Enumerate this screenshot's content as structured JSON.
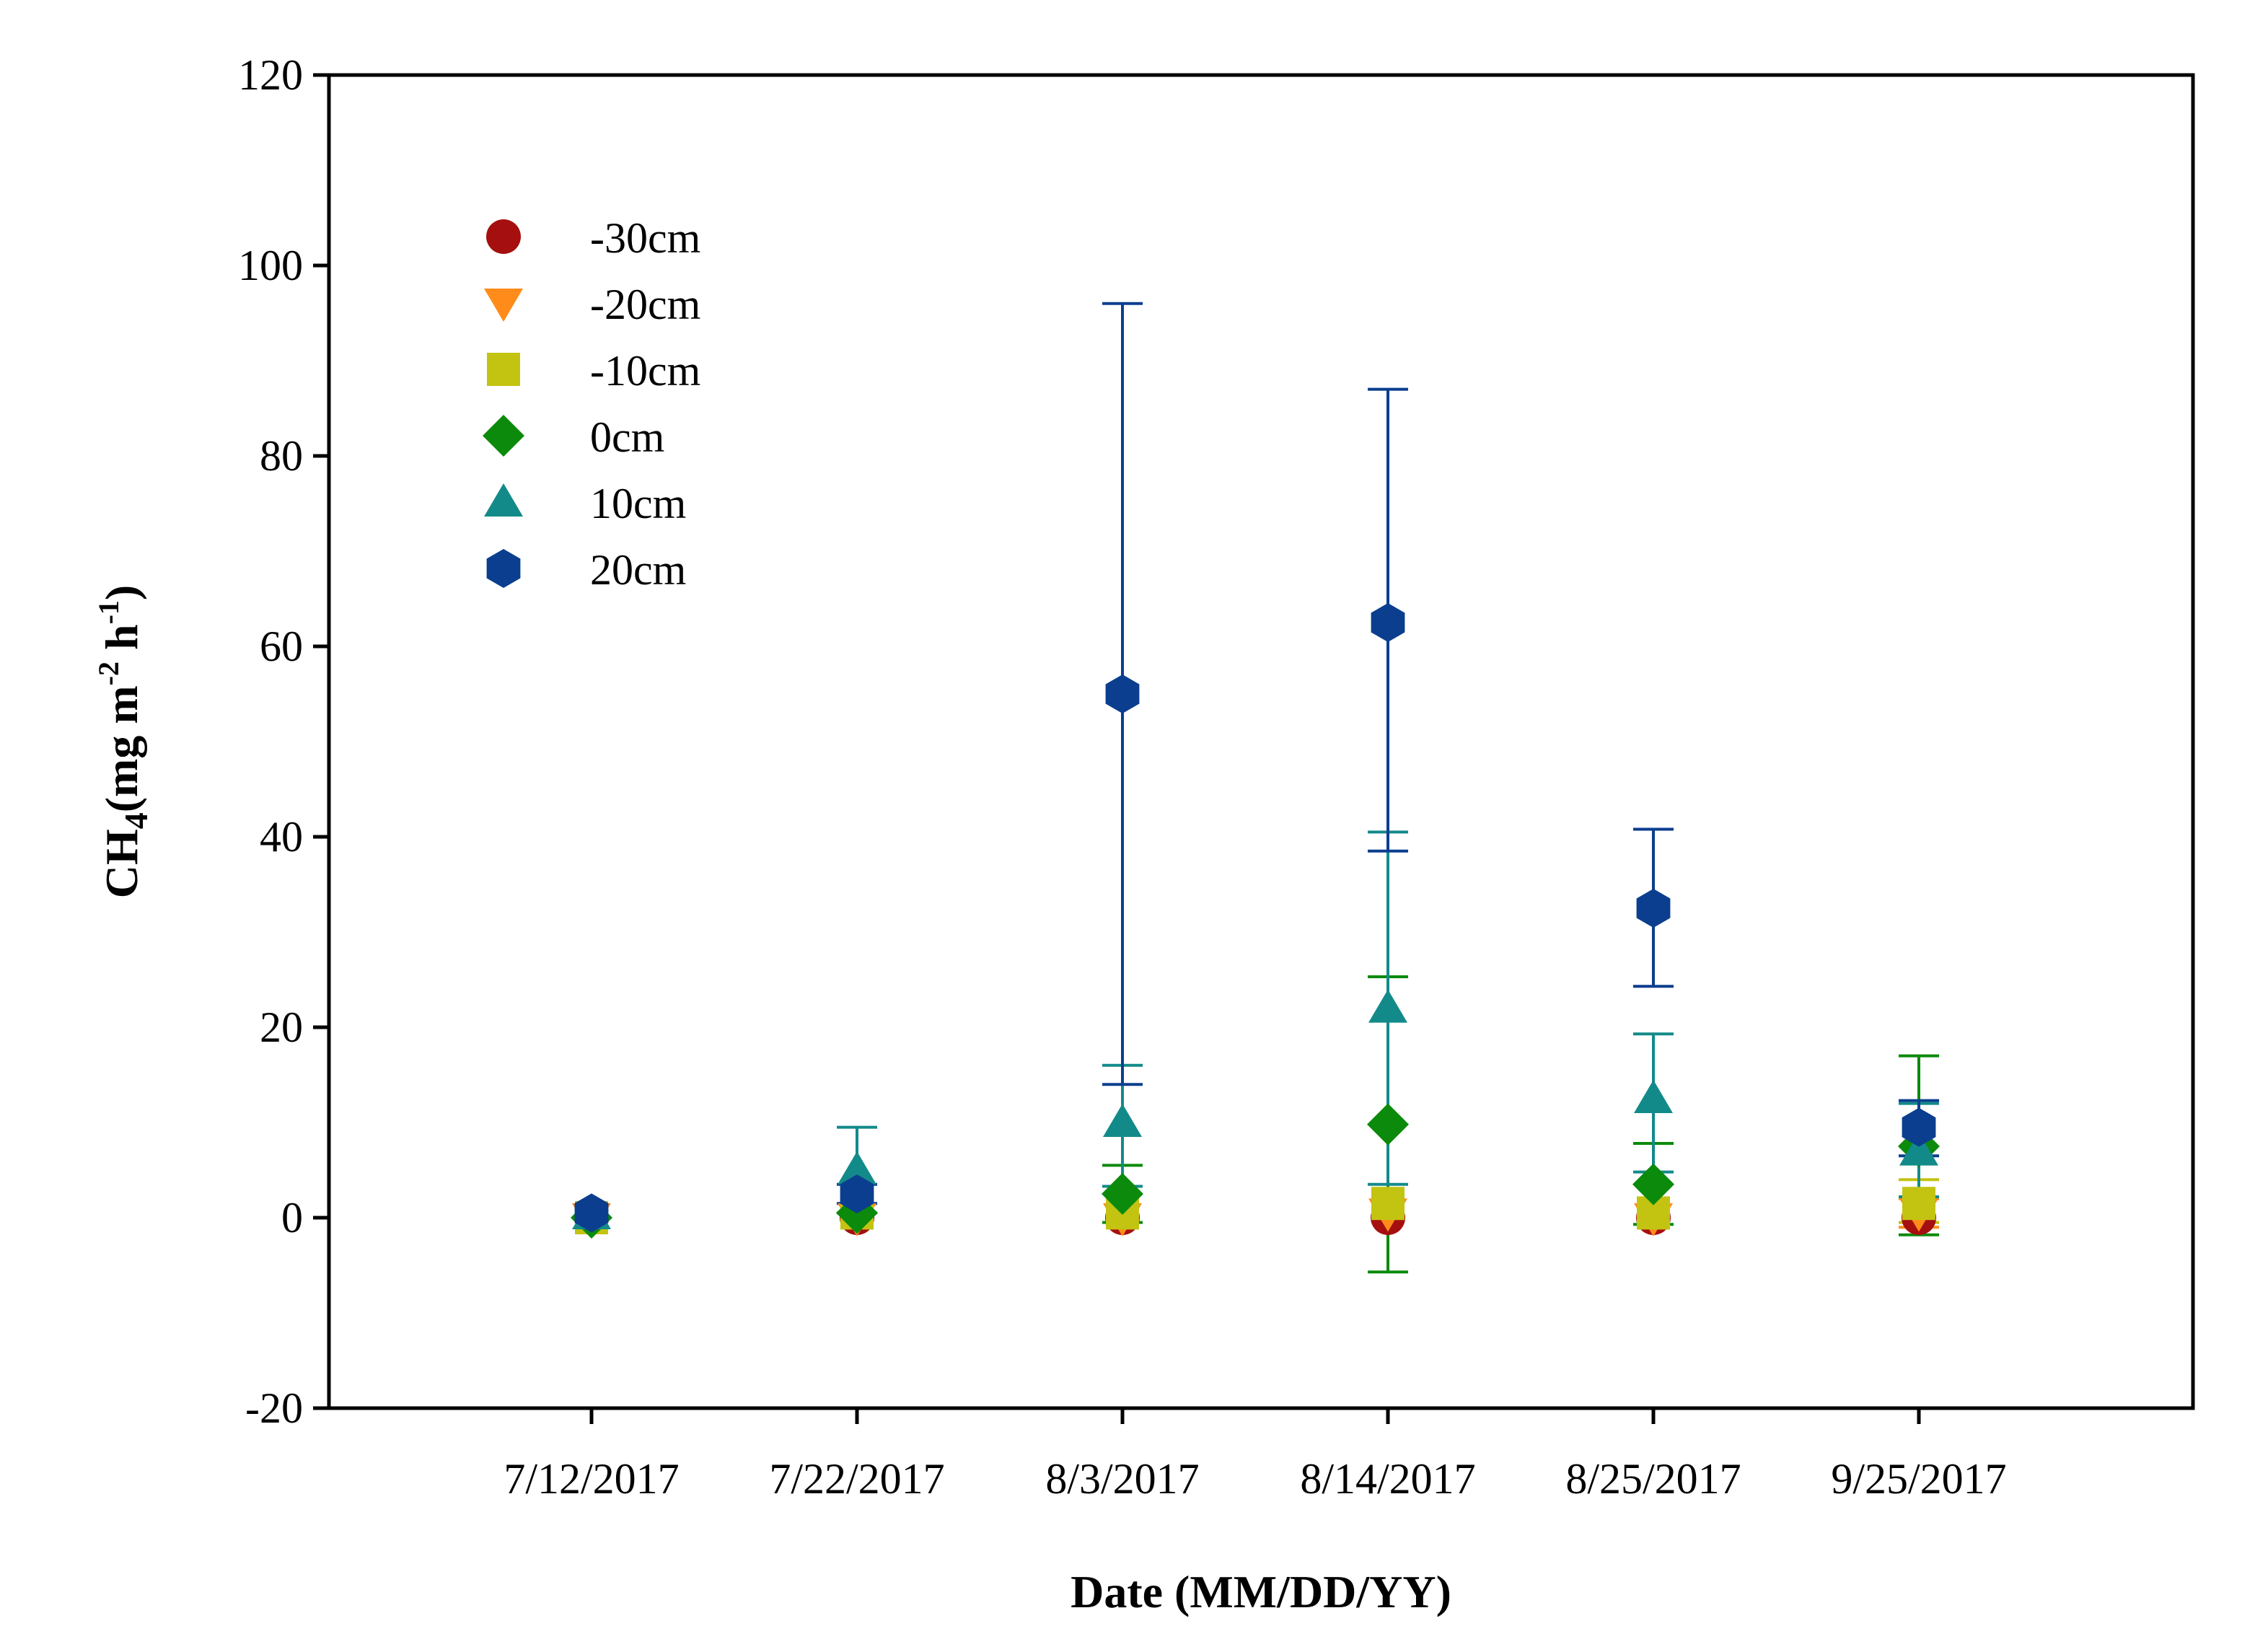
{
  "chart_data": {
    "type": "scatter",
    "title": "",
    "xlabel": "Date (MM/DD/YY)",
    "ylabel": {
      "text": "CH",
      "sub": "4",
      "unit_open": "(mg m",
      "unit_exp1": "-2",
      "unit_mid": " h",
      "unit_exp2": "-1",
      "unit_close": ")"
    },
    "ylim": [
      -20,
      120
    ],
    "yticks": [
      -20,
      0,
      20,
      40,
      60,
      80,
      100,
      120
    ],
    "grid": false,
    "legend_position": "top-left",
    "categories": [
      "7/12/2017",
      "7/22/2017",
      "8/3/2017",
      "8/14/2017",
      "8/25/2017",
      "9/25/2017"
    ],
    "series": [
      {
        "name": "-30cm",
        "marker": "circle",
        "color": "#a50f0f",
        "values": [
          0.0,
          0.0,
          0.0,
          0.0,
          0.0,
          0.0
        ],
        "err_low": [
          null,
          null,
          null,
          null,
          null,
          null
        ],
        "err_high": [
          null,
          null,
          null,
          null,
          null,
          null
        ]
      },
      {
        "name": "-20cm",
        "marker": "triangle-down",
        "color": "#ff8c1a",
        "values": [
          0.0,
          0.0,
          0.0,
          0.5,
          0.0,
          0.5
        ],
        "err_low": [
          null,
          null,
          null,
          null,
          null,
          -1.0
        ],
        "err_high": [
          null,
          null,
          null,
          null,
          null,
          2.0
        ]
      },
      {
        "name": "-10cm",
        "marker": "square",
        "color": "#c3c312",
        "values": [
          0.0,
          0.5,
          0.5,
          1.5,
          0.5,
          1.5
        ],
        "err_low": [
          null,
          null,
          null,
          null,
          null,
          -0.5
        ],
        "err_high": [
          null,
          null,
          null,
          null,
          null,
          4.0
        ]
      },
      {
        "name": "0cm",
        "marker": "diamond",
        "color": "#0b8a0b",
        "values": [
          0.0,
          0.5,
          2.5,
          9.8,
          3.5,
          7.5
        ],
        "err_low": [
          null,
          null,
          -0.5,
          -5.7,
          -0.7,
          -1.8
        ],
        "err_high": [
          null,
          null,
          5.5,
          25.3,
          7.8,
          17.0
        ]
      },
      {
        "name": "10cm",
        "marker": "triangle-up",
        "color": "#138a8a",
        "values": [
          0.3,
          5.0,
          10.0,
          22.0,
          12.5,
          7.0
        ],
        "err_low": [
          null,
          0.5,
          3.3,
          3.5,
          4.8,
          2.2
        ],
        "err_high": [
          null,
          9.5,
          16.0,
          40.5,
          19.3,
          12.0
        ]
      },
      {
        "name": "20cm",
        "marker": "hexagon",
        "color": "#0b3e8f",
        "values": [
          0.5,
          2.5,
          55.0,
          62.5,
          32.5,
          9.5
        ],
        "err_low": [
          null,
          1.5,
          14.0,
          38.5,
          24.3,
          6.5
        ],
        "err_high": [
          null,
          3.5,
          96.0,
          87.0,
          40.8,
          12.3
        ]
      }
    ]
  }
}
